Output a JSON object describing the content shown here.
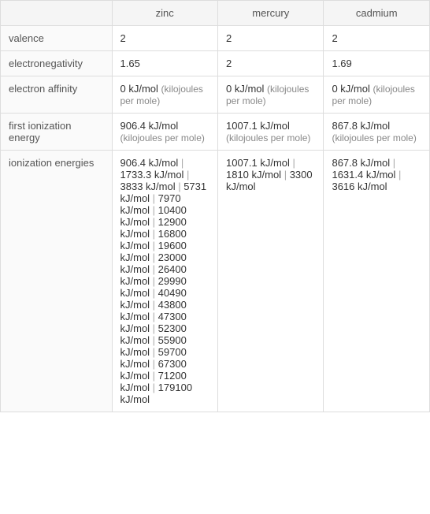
{
  "columns": [
    "zinc",
    "mercury",
    "cadmium"
  ],
  "rows": [
    {
      "label": "valence",
      "zinc": {
        "value": "2"
      },
      "mercury": {
        "value": "2"
      },
      "cadmium": {
        "value": "2"
      }
    },
    {
      "label": "electronegativity",
      "zinc": {
        "value": "1.65"
      },
      "mercury": {
        "value": "2"
      },
      "cadmium": {
        "value": "1.69"
      }
    },
    {
      "label": "electron affinity",
      "zinc": {
        "value": "0 kJ/mol",
        "unit": "(kilojoules per mole)"
      },
      "mercury": {
        "value": "0 kJ/mol",
        "unit": "(kilojoules per mole)"
      },
      "cadmium": {
        "value": "0 kJ/mol",
        "unit": "(kilojoules per mole)"
      }
    },
    {
      "label": "first ionization energy",
      "zinc": {
        "value": "906.4 kJ/mol",
        "unit": "(kilojoules per mole)"
      },
      "mercury": {
        "value": "1007.1 kJ/mol",
        "unit": "(kilojoules per mole)"
      },
      "cadmium": {
        "value": "867.8 kJ/mol",
        "unit": "(kilojoules per mole)"
      }
    },
    {
      "label": "ionization energies",
      "zinc": {
        "list": [
          "906.4 kJ/mol",
          "1733.3 kJ/mol",
          "3833 kJ/mol",
          "5731 kJ/mol",
          "7970 kJ/mol",
          "10400 kJ/mol",
          "12900 kJ/mol",
          "16800 kJ/mol",
          "19600 kJ/mol",
          "23000 kJ/mol",
          "26400 kJ/mol",
          "29990 kJ/mol",
          "40490 kJ/mol",
          "43800 kJ/mol",
          "47300 kJ/mol",
          "52300 kJ/mol",
          "55900 kJ/mol",
          "59700 kJ/mol",
          "67300 kJ/mol",
          "71200 kJ/mol",
          "179100 kJ/mol"
        ]
      },
      "mercury": {
        "list": [
          "1007.1 kJ/mol",
          "1810 kJ/mol",
          "3300 kJ/mol"
        ]
      },
      "cadmium": {
        "list": [
          "867.8 kJ/mol",
          "1631.4 kJ/mol",
          "3616 kJ/mol"
        ]
      }
    }
  ],
  "separator": "  |  "
}
